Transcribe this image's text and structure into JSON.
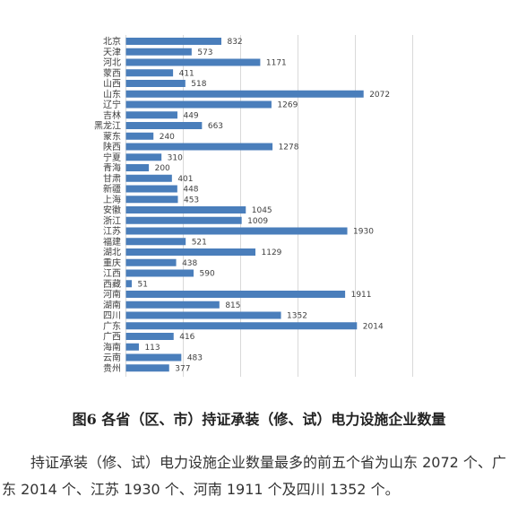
{
  "chart_data": {
    "type": "bar",
    "orientation": "horizontal",
    "categories": [
      "北京",
      "天津",
      "河北",
      "蒙西",
      "山西",
      "山东",
      "辽宁",
      "吉林",
      "黑龙江",
      "蒙东",
      "陕西",
      "宁夏",
      "青海",
      "甘肃",
      "新疆",
      "上海",
      "安徽",
      "浙江",
      "江苏",
      "福建",
      "湖北",
      "重庆",
      "江西",
      "西藏",
      "河南",
      "湖南",
      "四川",
      "广东",
      "广西",
      "海南",
      "云南",
      "贵州"
    ],
    "values": [
      832,
      573,
      1171,
      411,
      518,
      2072,
      1269,
      449,
      663,
      240,
      1278,
      310,
      200,
      401,
      448,
      453,
      1045,
      1009,
      1930,
      521,
      1129,
      438,
      590,
      51,
      1911,
      815,
      1352,
      2014,
      416,
      113,
      483,
      377
    ],
    "xlim": [
      0,
      2500
    ],
    "grid": true,
    "data_labels": true,
    "colors": {
      "bar": "#4a7ebb",
      "grid": "#d9d9d9",
      "label": "#404040"
    }
  },
  "figure": {
    "caption": "图6 各省（区、市）持证承装（修、试）电力设施企业数量"
  },
  "body": {
    "paragraph": "持证承装（修、试）电力设施企业数量最多的前五个省为山东 2072 个、广东 2014 个、江苏 1930 个、河南 1911 个及四川 1352 个。"
  }
}
